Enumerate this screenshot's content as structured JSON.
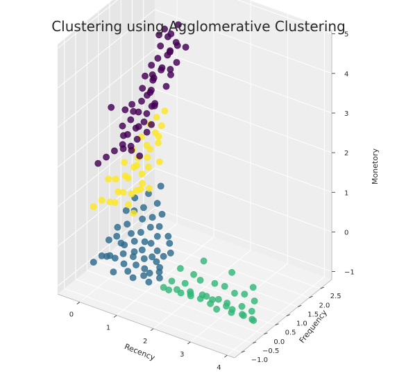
{
  "chart_data": {
    "type": "scatter",
    "projection": "3d",
    "title": "Clustering using Agglomerative Clustering",
    "xlabel": "Recency",
    "ylabel": "Frequency",
    "zlabel": "Monetory",
    "xlim": [
      -0.6,
      4.2
    ],
    "ylim": [
      -1.3,
      3.0
    ],
    "zlim": [
      -1.2,
      5.1
    ],
    "xticks": [
      "0",
      "1",
      "2",
      "3",
      "4"
    ],
    "yticks": [
      "−1.0",
      "−0.5",
      "0.0",
      "0.5",
      "1.0",
      "1.5",
      "2.0",
      "2.5"
    ],
    "zticks": [
      "−1",
      "0",
      "1",
      "2",
      "3",
      "4",
      "5"
    ],
    "grid": true,
    "legend": "none",
    "colors": [
      "#2e6b8e",
      "#35b779",
      "#fde725",
      "#440154"
    ],
    "series": [
      {
        "cluster": 0,
        "x": [
          -0.3,
          -0.2,
          -0.1,
          0.0,
          0.1,
          0.2,
          0.3,
          0.4,
          0.5,
          0.6,
          0.7,
          0.8,
          0.9,
          1.0,
          1.1,
          1.2,
          1.3,
          1.4,
          -0.25,
          -0.1,
          0.05,
          0.2,
          0.35,
          0.5,
          0.65,
          0.8,
          0.95,
          1.1,
          1.25,
          -0.2,
          0.0,
          0.2,
          0.4,
          0.6,
          0.8,
          1.0,
          1.2,
          -0.15,
          0.1,
          0.35,
          0.6,
          0.85,
          -0.1,
          0.2,
          0.5,
          0.15,
          0.45,
          0.75,
          1.05,
          1.3,
          0.3,
          0.7,
          1.15
        ],
        "y": [
          -0.2,
          0.0,
          0.2,
          -0.1,
          0.1,
          0.3,
          -0.3,
          0.0,
          0.25,
          -0.15,
          0.05,
          -0.25,
          0.1,
          -0.1,
          0.0,
          -0.2,
          0.1,
          -0.05,
          0.4,
          0.5,
          0.45,
          0.35,
          0.55,
          0.3,
          0.4,
          0.25,
          0.35,
          0.3,
          0.2,
          0.7,
          0.8,
          0.65,
          0.75,
          0.6,
          0.55,
          0.5,
          0.45,
          1.0,
          0.95,
          0.9,
          0.85,
          0.75,
          1.3,
          1.2,
          1.1,
          1.5,
          1.4,
          1.0,
          0.9,
          0.6,
          1.8,
          1.2,
          0.8
        ],
        "z": [
          -0.8,
          -0.7,
          -0.75,
          -0.6,
          -0.7,
          -0.65,
          -0.8,
          -0.7,
          -0.6,
          -0.75,
          -0.65,
          -0.8,
          -0.7,
          -0.75,
          -0.7,
          -0.8,
          -0.65,
          -0.7,
          -0.5,
          -0.4,
          -0.5,
          -0.45,
          -0.4,
          -0.5,
          -0.45,
          -0.55,
          -0.5,
          -0.55,
          -0.6,
          -0.3,
          -0.2,
          -0.3,
          -0.25,
          -0.35,
          -0.3,
          -0.4,
          -0.45,
          0.0,
          0.1,
          0.0,
          -0.1,
          -0.2,
          0.2,
          0.1,
          0.0,
          0.3,
          0.2,
          -0.1,
          -0.2,
          -0.4,
          0.4,
          0.1,
          -0.3
        ]
      },
      {
        "cluster": 1,
        "x": [
          1.6,
          1.7,
          1.8,
          1.9,
          2.0,
          2.1,
          2.2,
          2.3,
          2.4,
          2.5,
          2.6,
          2.7,
          2.8,
          2.9,
          3.0,
          3.1,
          3.2,
          3.3,
          3.4,
          3.5,
          3.6,
          3.7,
          3.8,
          3.9,
          4.0,
          4.1,
          1.75,
          2.05,
          2.35,
          2.65,
          2.95,
          3.25,
          3.55,
          3.85,
          2.2,
          2.9,
          3.6
        ],
        "y": [
          -0.2,
          0.0,
          -0.3,
          -0.1,
          0.1,
          -0.25,
          0.0,
          -0.15,
          -0.3,
          0.05,
          -0.2,
          -0.1,
          0.0,
          -0.25,
          -0.05,
          -0.3,
          0.0,
          -0.2,
          -0.1,
          -0.3,
          0.0,
          -0.15,
          -0.25,
          -0.05,
          -0.2,
          -0.3,
          0.3,
          0.4,
          0.2,
          0.35,
          0.3,
          0.25,
          0.2,
          0.15,
          0.6,
          0.7,
          0.5
        ],
        "z": [
          -0.8,
          -0.7,
          -0.75,
          -0.8,
          -0.7,
          -0.75,
          -0.8,
          -0.75,
          -0.7,
          -0.8,
          -0.75,
          -0.7,
          -0.8,
          -0.75,
          -0.7,
          -0.8,
          -0.75,
          -0.7,
          -0.8,
          -0.75,
          -0.7,
          -0.8,
          -0.75,
          -0.7,
          -0.8,
          -0.75,
          -0.5,
          -0.6,
          -0.55,
          -0.6,
          -0.55,
          -0.6,
          -0.5,
          -0.55,
          -0.3,
          -0.4,
          -0.45
        ]
      },
      {
        "cluster": 2,
        "x": [
          -0.3,
          -0.2,
          -0.1,
          0.0,
          0.1,
          0.2,
          0.3,
          0.4,
          0.5,
          0.6,
          -0.25,
          -0.05,
          0.15,
          0.35,
          0.55,
          -0.2,
          0.0,
          0.2,
          0.4,
          -0.15,
          0.05,
          0.25,
          0.45,
          -0.1,
          0.1,
          0.3,
          -0.05,
          0.15,
          0.35,
          0.0,
          0.2,
          0.1,
          -0.2,
          0.3,
          0.45,
          0.6
        ],
        "y": [
          -0.2,
          0.0,
          0.2,
          0.4,
          0.1,
          0.3,
          0.5,
          0.2,
          0.4,
          0.1,
          0.7,
          0.8,
          0.6,
          0.9,
          0.5,
          1.0,
          1.1,
          0.9,
          0.8,
          1.3,
          1.2,
          1.4,
          1.0,
          1.6,
          1.5,
          1.7,
          1.9,
          1.8,
          1.6,
          2.1,
          2.0,
          2.3,
          0.3,
          1.2,
          1.5,
          0.8
        ],
        "z": [
          0.6,
          0.7,
          0.6,
          0.8,
          0.7,
          0.9,
          0.8,
          0.7,
          1.0,
          0.6,
          0.9,
          1.0,
          1.1,
          0.9,
          1.0,
          1.2,
          1.1,
          1.3,
          1.2,
          1.4,
          1.3,
          1.5,
          1.3,
          1.6,
          1.5,
          1.7,
          1.8,
          1.7,
          1.6,
          1.9,
          1.8,
          2.0,
          1.1,
          1.4,
          1.2,
          0.9
        ]
      },
      {
        "cluster": 3,
        "x": [
          -0.3,
          -0.2,
          -0.1,
          0.0,
          0.1,
          0.2,
          0.3,
          0.4,
          -0.25,
          -0.15,
          -0.05,
          0.05,
          0.15,
          0.25,
          0.35,
          -0.3,
          -0.2,
          -0.1,
          0.0,
          0.1,
          0.2,
          0.3,
          -0.2,
          -0.05,
          0.1,
          0.25,
          -0.25,
          -0.1,
          0.05,
          0.2,
          -0.2,
          0.0,
          0.2,
          -0.15,
          0.05,
          0.25,
          -0.2,
          0.0,
          0.1,
          0.3,
          -0.1,
          0.2,
          0.0,
          0.3,
          -0.3,
          -0.1,
          0.15,
          0.35,
          0.05,
          -0.05,
          0.15,
          -0.15,
          0.1,
          0.3,
          -0.25,
          0.25
        ],
        "y": [
          0.0,
          0.2,
          0.4,
          0.6,
          0.8,
          0.3,
          0.5,
          0.7,
          1.0,
          1.2,
          0.9,
          1.1,
          1.3,
          0.9,
          1.1,
          1.5,
          1.4,
          1.6,
          1.3,
          1.5,
          1.7,
          1.4,
          1.8,
          1.9,
          1.7,
          1.6,
          2.0,
          2.1,
          1.9,
          2.2,
          2.2,
          2.3,
          2.4,
          2.4,
          2.5,
          2.3,
          2.6,
          2.7,
          2.8,
          2.5,
          2.9,
          2.7,
          2.6,
          2.9,
          1.2,
          0.8,
          1.0,
          1.3,
          1.6,
          2.0,
          2.1,
          2.7,
          2.9,
          2.2,
          0.5,
          1.8
        ],
        "z": [
          1.6,
          1.7,
          1.8,
          1.9,
          1.8,
          2.0,
          1.9,
          1.7,
          2.1,
          2.2,
          2.0,
          2.1,
          2.2,
          2.3,
          2.1,
          2.4,
          2.3,
          2.5,
          2.4,
          2.3,
          2.5,
          2.6,
          2.7,
          2.6,
          2.8,
          2.5,
          2.9,
          2.8,
          3.0,
          2.7,
          3.1,
          3.0,
          2.9,
          3.2,
          3.3,
          3.1,
          3.4,
          3.3,
          3.5,
          3.2,
          3.6,
          3.5,
          3.7,
          3.4,
          2.4,
          2.0,
          1.9,
          2.2,
          2.7,
          3.0,
          3.2,
          3.8,
          3.9,
          3.6,
          2.8,
          4.2
        ]
      }
    ]
  }
}
